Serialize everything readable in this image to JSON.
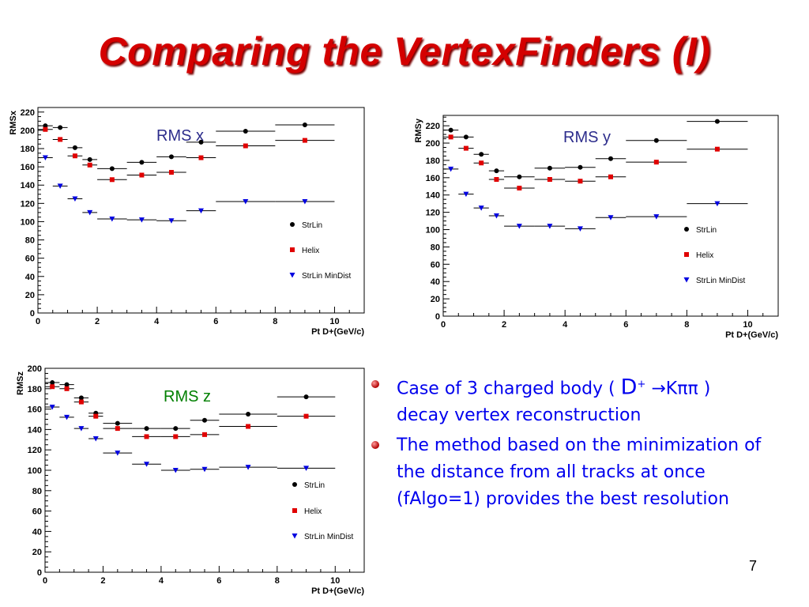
{
  "slide": {
    "title": "Comparing the VertexFinders (I)",
    "page_number": "7"
  },
  "bullets": [
    {
      "pre": "Case of 3 charged body ( ",
      "big": "D",
      "sup": "+",
      "arrow": " →",
      "post": "Kππ )",
      "line2": "decay vertex reconstruction"
    },
    {
      "text": "The method based on the minimization of the distance from all tracks at once (fAlgo=1) provides the best resolution"
    }
  ],
  "colors": {
    "StrLin": "#000000",
    "Helix": "#e00000",
    "StrLin MinDist": "#0000e0",
    "title": "#d40000",
    "bullet_text": "#0000ee"
  },
  "chart_data": [
    {
      "type": "scatter",
      "annotation": "RMS x",
      "annotation_color": "#2d2d8c",
      "xlabel": "Pt D+(GeV/c)",
      "ylabel": "RMSx",
      "xlim": [
        0,
        11
      ],
      "ylim": [
        0,
        225
      ],
      "xticks": [
        0,
        2,
        4,
        6,
        8,
        10
      ],
      "yticks": [
        0,
        20,
        40,
        60,
        80,
        100,
        120,
        140,
        160,
        180,
        200,
        220
      ],
      "legend_position": "right",
      "x": [
        0.25,
        0.75,
        1.25,
        1.75,
        2.5,
        3.5,
        4.5,
        5.5,
        7.0,
        9.0
      ],
      "xerr": [
        0.25,
        0.25,
        0.25,
        0.25,
        0.5,
        0.5,
        0.5,
        0.5,
        1.0,
        1.0
      ],
      "series": [
        {
          "name": "StrLin",
          "marker": "circle",
          "values": [
            205,
            203,
            181,
            168,
            158,
            165,
            171,
            187,
            199,
            206
          ]
        },
        {
          "name": "Helix",
          "marker": "square",
          "values": [
            201,
            190,
            172,
            162,
            146,
            151,
            154,
            170,
            183,
            189
          ]
        },
        {
          "name": "StrLin MinDist",
          "marker": "triangle",
          "values": [
            170,
            139,
            125,
            110,
            103,
            102,
            101,
            112,
            122,
            122
          ]
        }
      ]
    },
    {
      "type": "scatter",
      "annotation": "RMS y",
      "annotation_color": "#2d2d8c",
      "xlabel": "Pt D+(GeV/c)",
      "ylabel": "RMSy",
      "xlim": [
        0,
        11
      ],
      "ylim": [
        0,
        232
      ],
      "xticks": [
        0,
        2,
        4,
        6,
        8,
        10
      ],
      "yticks": [
        0,
        20,
        40,
        60,
        80,
        100,
        120,
        140,
        160,
        180,
        200,
        220
      ],
      "legend_position": "right",
      "x": [
        0.25,
        0.75,
        1.25,
        1.75,
        2.5,
        3.5,
        4.5,
        5.5,
        7.0,
        9.0
      ],
      "xerr": [
        0.25,
        0.25,
        0.25,
        0.25,
        0.5,
        0.5,
        0.5,
        0.5,
        1.0,
        1.0
      ],
      "series": [
        {
          "name": "StrLin",
          "marker": "circle",
          "values": [
            215,
            207,
            187,
            168,
            161,
            171,
            172,
            182,
            203,
            225
          ]
        },
        {
          "name": "Helix",
          "marker": "square",
          "values": [
            207,
            194,
            177,
            158,
            148,
            158,
            156,
            161,
            178,
            193
          ]
        },
        {
          "name": "StrLin MinDist",
          "marker": "triangle",
          "values": [
            170,
            141,
            125,
            116,
            104,
            104,
            101,
            114,
            115,
            130
          ]
        }
      ]
    },
    {
      "type": "scatter",
      "annotation": "RMS z",
      "annotation_color": "#008000",
      "xlabel": "Pt D+(GeV/c)",
      "ylabel": "RMSz",
      "xlim": [
        0,
        11
      ],
      "ylim": [
        0,
        200
      ],
      "xticks": [
        0,
        2,
        4,
        6,
        8,
        10
      ],
      "yticks": [
        0,
        20,
        40,
        60,
        80,
        100,
        120,
        140,
        160,
        180,
        200
      ],
      "legend_position": "right",
      "x": [
        0.25,
        0.75,
        1.25,
        1.75,
        2.5,
        3.5,
        4.5,
        5.5,
        7.0,
        9.0
      ],
      "xerr": [
        0.25,
        0.25,
        0.25,
        0.25,
        0.5,
        0.5,
        0.5,
        0.5,
        1.0,
        1.0
      ],
      "series": [
        {
          "name": "StrLin",
          "marker": "circle",
          "values": [
            186,
            184,
            171,
            156,
            146,
            141,
            141,
            149,
            155,
            172
          ]
        },
        {
          "name": "Helix",
          "marker": "square",
          "values": [
            182,
            180,
            167,
            153,
            141,
            133,
            133,
            135,
            143,
            153
          ]
        },
        {
          "name": "StrLin MinDist",
          "marker": "triangle",
          "values": [
            162,
            152,
            141,
            131,
            117,
            106,
            100,
            101,
            103,
            102
          ]
        }
      ]
    }
  ]
}
